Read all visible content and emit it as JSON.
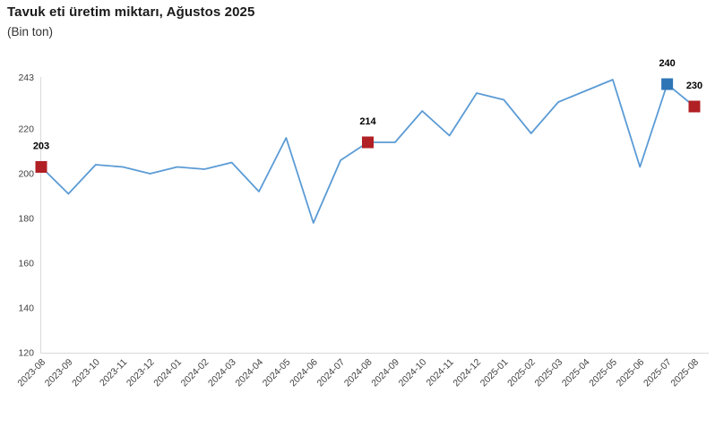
{
  "header": {
    "title": "Tavuk eti üretim miktarı, Ağustos 2025",
    "subtitle": "(Bin ton)"
  },
  "chart_data": {
    "type": "line",
    "title": "Tavuk eti üretim miktarı, Ağustos 2025",
    "subtitle": "(Bin ton)",
    "ylabel": "",
    "xlabel": "",
    "grid": false,
    "legend": "none",
    "ylim": [
      120,
      243
    ],
    "yticks": [
      120,
      140,
      160,
      180,
      200,
      220,
      243
    ],
    "categories": [
      "2023-08",
      "2023-09",
      "2023-10",
      "2023-11",
      "2023-12",
      "2024-01",
      "2024-02",
      "2024-03",
      "2024-04",
      "2024-05",
      "2024-06",
      "2024-07",
      "2024-08",
      "2024-09",
      "2024-10",
      "2024-11",
      "2024-12",
      "2025-01",
      "2025-02",
      "2025-03",
      "2025-04",
      "2025-05",
      "2025-06",
      "2025-07",
      "2025-08"
    ],
    "values": [
      203,
      191,
      204,
      203,
      200,
      203,
      202,
      205,
      192,
      216,
      178,
      206,
      214,
      214,
      228,
      217,
      236,
      233,
      218,
      232,
      237,
      242,
      203,
      240,
      230
    ],
    "annotations": [
      {
        "category": "2023-08",
        "index": 0,
        "value": 203,
        "label": "203",
        "marker_color": "#b02024"
      },
      {
        "category": "2024-08",
        "index": 12,
        "value": 214,
        "label": "214",
        "marker_color": "#b02024"
      },
      {
        "category": "2025-07",
        "index": 23,
        "value": 240,
        "label": "240",
        "marker_color": "#2e75b6"
      },
      {
        "category": "2025-08",
        "index": 24,
        "value": 230,
        "label": "230",
        "marker_color": "#b02024"
      }
    ],
    "colors": {
      "line": "#5b9bd5",
      "marker_red": "#b02024",
      "marker_blue": "#2e75b6",
      "axis": "#d9d9d9",
      "tick_text": "#404040",
      "label_text": "#000000"
    }
  }
}
